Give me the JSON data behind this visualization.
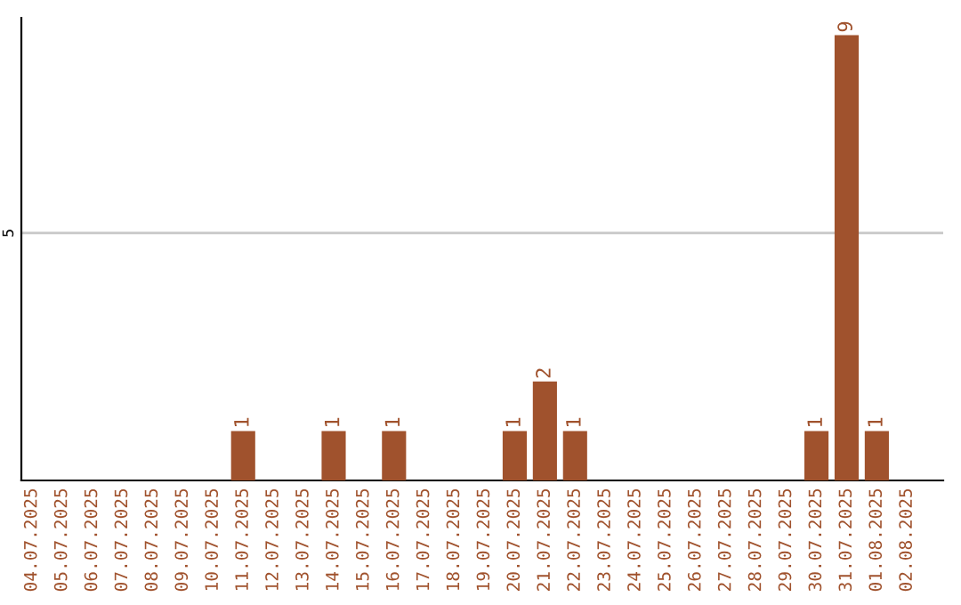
{
  "chart_data": {
    "type": "bar",
    "categories": [
      "04.07.2025",
      "05.07.2025",
      "06.07.2025",
      "07.07.2025",
      "08.07.2025",
      "09.07.2025",
      "10.07.2025",
      "11.07.2025",
      "12.07.2025",
      "13.07.2025",
      "14.07.2025",
      "15.07.2025",
      "16.07.2025",
      "17.07.2025",
      "18.07.2025",
      "19.07.2025",
      "20.07.2025",
      "21.07.2025",
      "22.07.2025",
      "23.07.2025",
      "24.07.2025",
      "25.07.2025",
      "26.07.2025",
      "27.07.2025",
      "28.07.2025",
      "29.07.2025",
      "30.07.2025",
      "31.07.2025",
      "01.08.2025",
      "02.08.2025"
    ],
    "values": [
      0,
      0,
      0,
      0,
      0,
      0,
      0,
      1,
      0,
      0,
      1,
      0,
      1,
      0,
      0,
      0,
      1,
      2,
      1,
      0,
      0,
      0,
      0,
      0,
      0,
      0,
      1,
      9,
      1,
      0
    ],
    "value_labels": [
      null,
      null,
      null,
      null,
      null,
      null,
      null,
      "1",
      null,
      null,
      "1",
      null,
      "1",
      null,
      null,
      null,
      "1",
      "2",
      "1",
      null,
      null,
      null,
      null,
      null,
      null,
      null,
      "1",
      "9",
      "1",
      null
    ],
    "color": "#a0522d",
    "ylim": [
      0,
      9.35
    ],
    "yticks": [
      5
    ],
    "grid": "y",
    "legend": false
  }
}
